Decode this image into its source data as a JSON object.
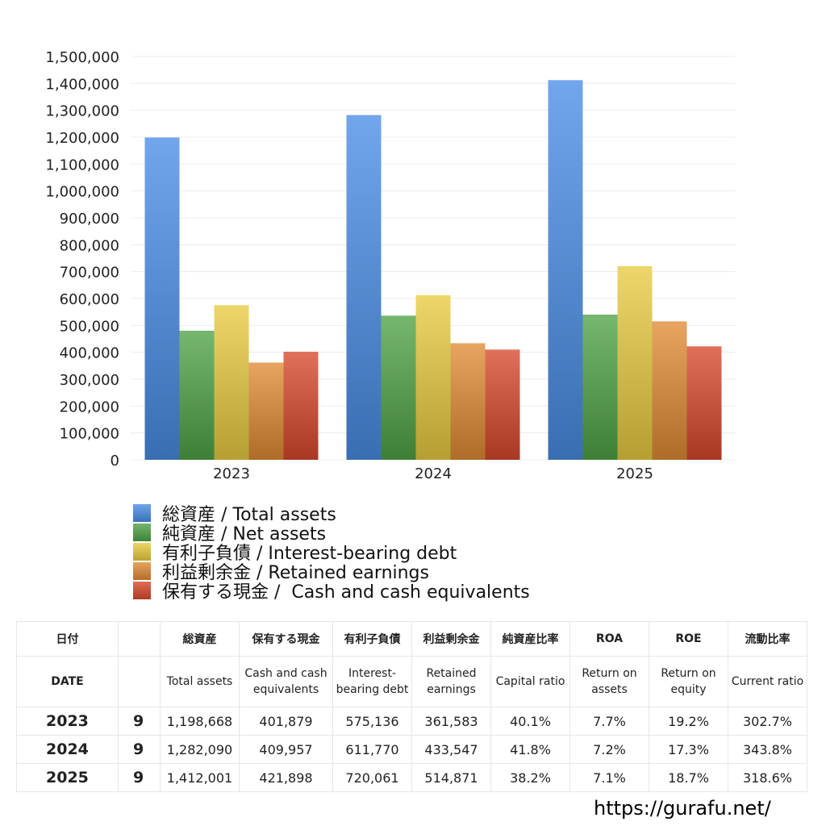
{
  "chart_data": {
    "type": "bar",
    "categories": [
      "2023",
      "2024",
      "2025"
    ],
    "series": [
      {
        "name": "総資産 / Total assets",
        "color": "#4a8de6",
        "values": [
          1198668,
          1282090,
          1412001
        ]
      },
      {
        "name": "純資産 / Net assets",
        "color": "#4fa347",
        "values": [
          480000,
          536000,
          540000
        ]
      },
      {
        "name": "有利子負債 / Interest-bearing debt",
        "color": "#e8cc40",
        "values": [
          575136,
          611770,
          720061
        ]
      },
      {
        "name": "利益剰余金 / Retained earnings",
        "color": "#e08b35",
        "values": [
          361583,
          433547,
          514871
        ]
      },
      {
        "name": "保有する現金 /  Cash and cash equivalents",
        "color": "#d8482c",
        "values": [
          401879,
          409957,
          421898
        ]
      }
    ],
    "y_ticks": [
      "0",
      "100,000",
      "200,000",
      "300,000",
      "400,000",
      "500,000",
      "600,000",
      "700,000",
      "800,000",
      "900,000",
      "1,000,000",
      "1,100,000",
      "1,200,000",
      "1,300,000",
      "1,400,000",
      "1,500,000"
    ],
    "ylim": [
      0,
      1500000
    ],
    "grid": true,
    "legend_position": "bottom-left"
  },
  "table": {
    "header_jp": [
      "日付",
      "",
      "総資産",
      "保有する現金",
      "有利子負債",
      "利益剰余金",
      "純資産比率",
      "ROA",
      "ROE",
      "流動比率"
    ],
    "header_en": [
      "DATE",
      "",
      "Total assets",
      "Cash and cash equivalents",
      "Interest-bearing debt",
      "Retained earnings",
      "Capital ratio",
      "Return on assets",
      "Return on equity",
      "Current ratio"
    ],
    "rows": [
      [
        "2023",
        "9",
        "1,198,668",
        "401,879",
        "575,136",
        "361,583",
        "40.1%",
        "7.7%",
        "19.2%",
        "302.7%"
      ],
      [
        "2024",
        "9",
        "1,282,090",
        "409,957",
        "611,770",
        "433,547",
        "41.8%",
        "7.2%",
        "17.3%",
        "343.8%"
      ],
      [
        "2025",
        "9",
        "1,412,001",
        "421,898",
        "720,061",
        "514,871",
        "38.2%",
        "7.1%",
        "18.7%",
        "318.6%"
      ]
    ]
  },
  "site_url": "https://gurafu.net/"
}
